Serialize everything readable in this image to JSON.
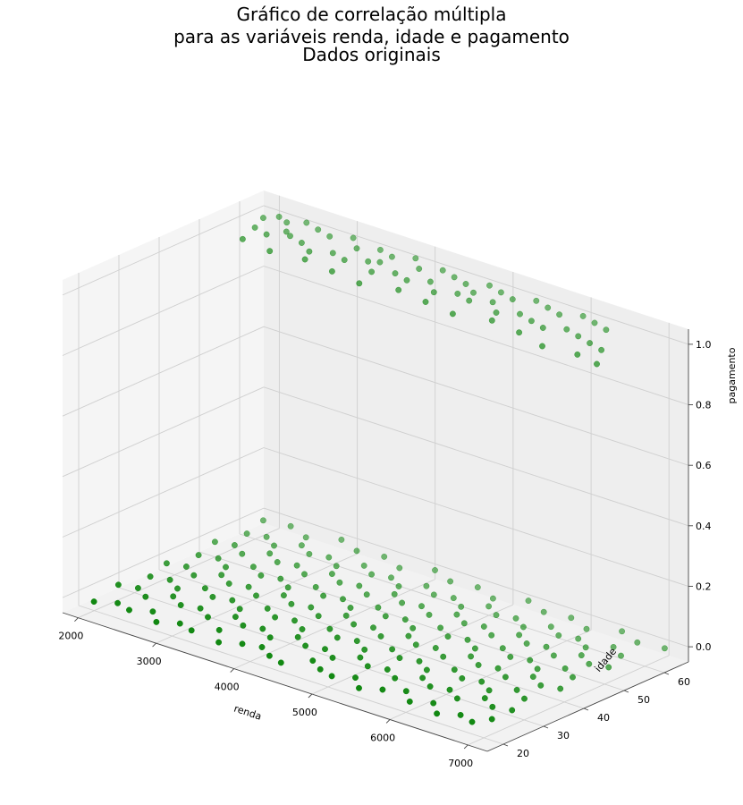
{
  "chart_data": {
    "type": "scatter",
    "title_lines": [
      "Gráfico de correlação múltipla",
      "para as variáveis renda, idade e pagamento",
      "Dados originais"
    ],
    "xlabel": "renda",
    "ylabel": "idade",
    "zlabel": "pagamento",
    "xlim": [
      1800,
      7250
    ],
    "ylim": [
      16,
      66
    ],
    "zlim": [
      -0.05,
      1.05
    ],
    "xticks": [
      2000,
      3000,
      4000,
      5000,
      6000,
      7000
    ],
    "yticks": [
      20,
      30,
      40,
      50,
      60
    ],
    "zticks": [
      0.0,
      0.2,
      0.4,
      0.6,
      0.8,
      1.0
    ],
    "xtick_labels": [
      "2000",
      "3000",
      "4000",
      "5000",
      "6000",
      "7000"
    ],
    "ytick_labels": [
      "20",
      "30",
      "40",
      "50",
      "60"
    ],
    "ztick_labels": [
      "0.0",
      "0.2",
      "0.4",
      "0.6",
      "0.8",
      "1.0"
    ],
    "grid": true,
    "marker_color": "#008000",
    "series": [
      {
        "z": 1,
        "points": [
          [
            2000,
            62
          ],
          [
            2100,
            64
          ],
          [
            2250,
            63
          ],
          [
            2400,
            65
          ],
          [
            2600,
            64
          ],
          [
            2800,
            63
          ],
          [
            3000,
            65
          ],
          [
            3200,
            62
          ],
          [
            3400,
            64
          ],
          [
            3600,
            63
          ],
          [
            3800,
            65
          ],
          [
            4000,
            62
          ],
          [
            4200,
            64
          ],
          [
            4400,
            63
          ],
          [
            4600,
            62
          ],
          [
            4800,
            64
          ],
          [
            5000,
            63
          ],
          [
            5200,
            62
          ],
          [
            5400,
            64
          ],
          [
            5600,
            63
          ],
          [
            5800,
            62
          ],
          [
            6000,
            64
          ],
          [
            6200,
            63
          ],
          [
            6400,
            62
          ],
          [
            2100,
            58
          ],
          [
            2300,
            57
          ],
          [
            2500,
            59
          ],
          [
            2700,
            58
          ],
          [
            2900,
            56
          ],
          [
            3100,
            58
          ],
          [
            3300,
            57
          ],
          [
            3500,
            59
          ],
          [
            3700,
            56
          ],
          [
            3900,
            58
          ],
          [
            4100,
            57
          ],
          [
            4300,
            59
          ],
          [
            4500,
            56
          ],
          [
            4700,
            58
          ],
          [
            4900,
            57
          ],
          [
            5100,
            59
          ],
          [
            5300,
            56
          ],
          [
            5500,
            58
          ],
          [
            5700,
            57
          ],
          [
            5900,
            56
          ],
          [
            6100,
            58
          ],
          [
            6300,
            57
          ],
          [
            6500,
            56
          ],
          [
            6700,
            55
          ],
          [
            2200,
            53
          ],
          [
            2600,
            52
          ],
          [
            3000,
            53
          ],
          [
            3400,
            52
          ],
          [
            3800,
            51
          ],
          [
            4200,
            53
          ],
          [
            4600,
            52
          ],
          [
            5000,
            51
          ],
          [
            5400,
            53
          ],
          [
            5800,
            52
          ],
          [
            6200,
            50
          ],
          [
            6600,
            51
          ],
          [
            6900,
            50
          ],
          [
            2400,
            60
          ],
          [
            3600,
            60
          ],
          [
            4800,
            60
          ]
        ]
      },
      {
        "z": 0,
        "points": [
          [
            2100,
            18
          ],
          [
            2300,
            20
          ],
          [
            2500,
            19
          ],
          [
            2700,
            21
          ],
          [
            2900,
            18
          ],
          [
            3100,
            20
          ],
          [
            3300,
            19
          ],
          [
            3500,
            22
          ],
          [
            3700,
            18
          ],
          [
            3900,
            20
          ],
          [
            4100,
            21
          ],
          [
            4300,
            19
          ],
          [
            4500,
            18
          ],
          [
            4700,
            22
          ],
          [
            4900,
            20
          ],
          [
            5100,
            19
          ],
          [
            5300,
            21
          ],
          [
            5500,
            18
          ],
          [
            5700,
            20
          ],
          [
            5900,
            22
          ],
          [
            6100,
            19
          ],
          [
            6300,
            21
          ],
          [
            6500,
            18
          ],
          [
            6700,
            20
          ],
          [
            6900,
            19
          ],
          [
            7000,
            22
          ],
          [
            2000,
            26
          ],
          [
            2200,
            27
          ],
          [
            2400,
            25
          ],
          [
            2600,
            28
          ],
          [
            2800,
            26
          ],
          [
            3000,
            27
          ],
          [
            3200,
            25
          ],
          [
            3400,
            28
          ],
          [
            3600,
            26
          ],
          [
            3800,
            27
          ],
          [
            4000,
            25
          ],
          [
            4200,
            28
          ],
          [
            4400,
            26
          ],
          [
            4600,
            27
          ],
          [
            4800,
            25
          ],
          [
            5000,
            28
          ],
          [
            5200,
            26
          ],
          [
            5400,
            27
          ],
          [
            5600,
            25
          ],
          [
            5800,
            28
          ],
          [
            6000,
            26
          ],
          [
            6200,
            27
          ],
          [
            6400,
            25
          ],
          [
            6600,
            28
          ],
          [
            6800,
            26
          ],
          [
            7000,
            27
          ],
          [
            2100,
            32
          ],
          [
            2300,
            33
          ],
          [
            2500,
            31
          ],
          [
            2700,
            34
          ],
          [
            2900,
            32
          ],
          [
            3100,
            33
          ],
          [
            3300,
            31
          ],
          [
            3500,
            34
          ],
          [
            3700,
            32
          ],
          [
            3900,
            33
          ],
          [
            4100,
            31
          ],
          [
            4300,
            34
          ],
          [
            4500,
            32
          ],
          [
            4700,
            33
          ],
          [
            4900,
            31
          ],
          [
            5100,
            34
          ],
          [
            5300,
            32
          ],
          [
            5500,
            33
          ],
          [
            5700,
            31
          ],
          [
            5900,
            34
          ],
          [
            6100,
            32
          ],
          [
            6300,
            33
          ],
          [
            6500,
            31
          ],
          [
            6700,
            34
          ],
          [
            6900,
            32
          ],
          [
            2000,
            38
          ],
          [
            2200,
            39
          ],
          [
            2400,
            37
          ],
          [
            2600,
            40
          ],
          [
            2800,
            38
          ],
          [
            3000,
            39
          ],
          [
            3200,
            37
          ],
          [
            3400,
            40
          ],
          [
            3600,
            38
          ],
          [
            3800,
            39
          ],
          [
            4000,
            37
          ],
          [
            4200,
            40
          ],
          [
            4400,
            38
          ],
          [
            4600,
            39
          ],
          [
            4800,
            37
          ],
          [
            5000,
            40
          ],
          [
            5200,
            38
          ],
          [
            5400,
            39
          ],
          [
            5600,
            37
          ],
          [
            5800,
            40
          ],
          [
            6000,
            38
          ],
          [
            6200,
            39
          ],
          [
            6400,
            37
          ],
          [
            6600,
            40
          ],
          [
            6800,
            38
          ],
          [
            7000,
            39
          ],
          [
            2100,
            44
          ],
          [
            2300,
            45
          ],
          [
            2500,
            43
          ],
          [
            2700,
            46
          ],
          [
            2900,
            44
          ],
          [
            3100,
            45
          ],
          [
            3300,
            43
          ],
          [
            3500,
            46
          ],
          [
            3700,
            44
          ],
          [
            3900,
            45
          ],
          [
            4100,
            43
          ],
          [
            4300,
            46
          ],
          [
            4500,
            44
          ],
          [
            4700,
            45
          ],
          [
            4900,
            43
          ],
          [
            5100,
            46
          ],
          [
            5300,
            44
          ],
          [
            5500,
            45
          ],
          [
            5700,
            43
          ],
          [
            5900,
            46
          ],
          [
            6100,
            44
          ],
          [
            6300,
            45
          ],
          [
            6500,
            43
          ],
          [
            6700,
            46
          ],
          [
            6900,
            44
          ],
          [
            2000,
            50
          ],
          [
            2200,
            51
          ],
          [
            2400,
            49
          ],
          [
            2600,
            52
          ],
          [
            2800,
            50
          ],
          [
            3000,
            51
          ],
          [
            3200,
            49
          ],
          [
            3400,
            52
          ],
          [
            3600,
            50
          ],
          [
            3800,
            51
          ],
          [
            4000,
            49
          ],
          [
            4200,
            52
          ],
          [
            4400,
            50
          ],
          [
            4600,
            51
          ],
          [
            4800,
            49
          ],
          [
            5000,
            52
          ],
          [
            5200,
            50
          ],
          [
            5400,
            51
          ],
          [
            5600,
            49
          ],
          [
            5800,
            52
          ],
          [
            6000,
            50
          ],
          [
            6200,
            51
          ],
          [
            6400,
            49
          ],
          [
            6600,
            52
          ],
          [
            6800,
            50
          ],
          [
            7000,
            51
          ],
          [
            2100,
            56
          ],
          [
            2300,
            57
          ],
          [
            2500,
            55
          ],
          [
            2700,
            58
          ],
          [
            2900,
            56
          ],
          [
            3100,
            57
          ],
          [
            3300,
            55
          ],
          [
            3500,
            58
          ],
          [
            3700,
            56
          ],
          [
            3900,
            57
          ],
          [
            4100,
            55
          ],
          [
            4300,
            58
          ],
          [
            4500,
            56
          ],
          [
            4700,
            57
          ],
          [
            4900,
            55
          ],
          [
            5100,
            58
          ],
          [
            5300,
            56
          ],
          [
            5500,
            57
          ],
          [
            5700,
            55
          ],
          [
            5900,
            58
          ],
          [
            6100,
            56
          ],
          [
            6300,
            57
          ],
          [
            6500,
            55
          ],
          [
            6700,
            58
          ],
          [
            6900,
            56
          ],
          [
            2000,
            62
          ],
          [
            2300,
            63
          ],
          [
            2600,
            61
          ],
          [
            2900,
            64
          ],
          [
            3200,
            62
          ],
          [
            3500,
            63
          ],
          [
            3800,
            61
          ],
          [
            4100,
            64
          ],
          [
            4400,
            62
          ],
          [
            4700,
            63
          ],
          [
            5000,
            61
          ],
          [
            5300,
            64
          ],
          [
            5600,
            62
          ],
          [
            5900,
            63
          ],
          [
            6200,
            61
          ],
          [
            6500,
            64
          ],
          [
            6800,
            62
          ],
          [
            7100,
            63
          ]
        ]
      }
    ]
  }
}
